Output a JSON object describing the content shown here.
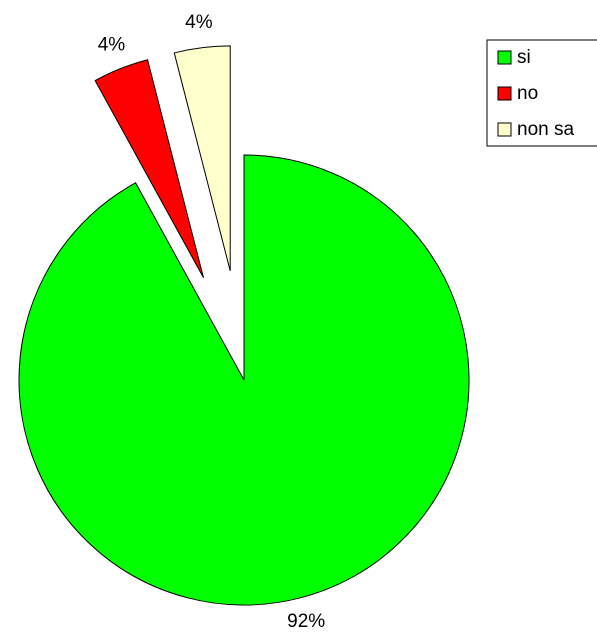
{
  "chart_data": {
    "type": "pie",
    "categories": [
      "si",
      "no",
      "non sa"
    ],
    "values": [
      92,
      4,
      4
    ],
    "value_labels": [
      "92%",
      "4%",
      "4%"
    ],
    "colors": [
      "#00ff00",
      "#ff0000",
      "#ffffcc"
    ],
    "legend": "top-right"
  }
}
